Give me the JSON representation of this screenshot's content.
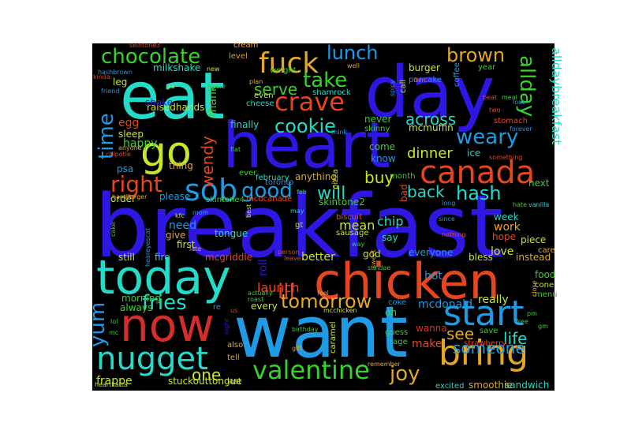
{
  "palette": [
    "#2e17e3",
    "#1f9be6",
    "#23dbc8",
    "#39d12e",
    "#c8e628",
    "#e3a825",
    "#e6461f",
    "#d62c2c"
  ],
  "words": [
    {
      "text": "breakfast",
      "color": "#2e17e3"
    },
    {
      "text": "want",
      "color": "#1f9be6"
    },
    {
      "text": "day",
      "color": "#2e17e3"
    },
    {
      "text": "eat",
      "color": "#23dbc8"
    },
    {
      "text": "heart",
      "color": "#2e17e3"
    },
    {
      "text": "chicken",
      "color": "#e6461f"
    },
    {
      "text": "today",
      "color": "#23dbc8"
    },
    {
      "text": "now",
      "color": "#d62c2c"
    },
    {
      "text": "go",
      "color": "#c8e628"
    },
    {
      "text": "canada",
      "color": "#e6461f"
    },
    {
      "text": "bring",
      "color": "#e3a825"
    },
    {
      "text": "nugget",
      "color": "#23dbc8"
    },
    {
      "text": "start",
      "color": "#1f9be6"
    },
    {
      "text": "valentine",
      "color": "#39d12e"
    },
    {
      "text": "sob",
      "color": "#1f9be6"
    },
    {
      "text": "fuck",
      "color": "#e3a825"
    },
    {
      "text": "crave",
      "color": "#e6461f"
    },
    {
      "text": "chocolate",
      "color": "#39d12e"
    },
    {
      "text": "lunch",
      "color": "#1f9be6"
    },
    {
      "text": "brown",
      "color": "#e3a825"
    },
    {
      "text": "take",
      "color": "#39d12e"
    },
    {
      "text": "cookie",
      "color": "#23dbc8"
    },
    {
      "text": "right",
      "color": "#e6461f"
    },
    {
      "text": "good",
      "color": "#1f9be6"
    },
    {
      "text": "time",
      "color": "#1f9be6"
    },
    {
      "text": "weary",
      "color": "#1f9be6"
    },
    {
      "text": "alldaybreakfast",
      "color": "#23dbc8"
    },
    {
      "text": "allday",
      "color": "#39d12e"
    },
    {
      "text": "hash",
      "color": "#23dbc8"
    },
    {
      "text": "tomorrow",
      "color": "#e3a825"
    },
    {
      "text": "fries",
      "color": "#23dbc8"
    },
    {
      "text": "ill",
      "color": "#e6461f"
    },
    {
      "text": "will",
      "color": "#23dbc8"
    },
    {
      "text": "yum",
      "color": "#1f9be6"
    },
    {
      "text": "joy",
      "color": "#e3a825"
    },
    {
      "text": "someone",
      "color": "#1f9be6"
    },
    {
      "text": "one",
      "color": "#c8e628"
    },
    {
      "text": "across",
      "color": "#23dbc8"
    },
    {
      "text": "back",
      "color": "#23dbc8"
    },
    {
      "text": "wendy",
      "color": "#e6461f"
    },
    {
      "text": "dinner",
      "color": "#c8e628"
    },
    {
      "text": "serve",
      "color": "#39d12e"
    },
    {
      "text": "buy",
      "color": "#c8e628"
    },
    {
      "text": "see",
      "color": "#e3a825"
    },
    {
      "text": "life",
      "color": "#23dbc8"
    },
    {
      "text": "launch",
      "color": "#e6461f"
    },
    {
      "text": "mcdonald",
      "color": "#1f9be6"
    },
    {
      "text": "frappe",
      "color": "#c8e628"
    },
    {
      "text": "stuckouttongue",
      "color": "#c8e628"
    },
    {
      "text": "smoothie",
      "color": "#e3a825"
    },
    {
      "text": "sandwich",
      "color": "#23dbc8"
    },
    {
      "text": "hot",
      "color": "#1f9be6"
    },
    {
      "text": "chip",
      "color": "#23dbc8"
    },
    {
      "text": "mean",
      "color": "#c8e628"
    },
    {
      "text": "make",
      "color": "#e6461f"
    },
    {
      "text": "wanna",
      "color": "#d62c2c"
    },
    {
      "text": "really",
      "color": "#c8e628"
    },
    {
      "text": "love",
      "color": "#c8e628"
    },
    {
      "text": "work",
      "color": "#e3a825"
    },
    {
      "text": "food",
      "color": "#39d12e"
    },
    {
      "text": "instead",
      "color": "#e3a825"
    },
    {
      "text": "morning",
      "color": "#39d12e"
    },
    {
      "text": "still",
      "color": "#c8e628"
    },
    {
      "text": "mcgriddle",
      "color": "#e6461f"
    },
    {
      "text": "tongue",
      "color": "#23dbc8"
    },
    {
      "text": "need",
      "color": "#1f9be6"
    },
    {
      "text": "give",
      "color": "#e3a825"
    },
    {
      "text": "first",
      "color": "#c8e628"
    },
    {
      "text": "fire",
      "color": "#23dbc8"
    },
    {
      "text": "happy",
      "color": "#39d12e"
    },
    {
      "text": "egg",
      "color": "#e6461f"
    },
    {
      "text": "sleep",
      "color": "#c8e628"
    },
    {
      "text": "thank",
      "color": "#39d12e"
    },
    {
      "text": "finally",
      "color": "#23dbc8"
    },
    {
      "text": "come",
      "color": "#39d12e"
    },
    {
      "text": "know",
      "color": "#1f9be6"
    },
    {
      "text": "never",
      "color": "#39d12e"
    },
    {
      "text": "mcmuffin",
      "color": "#c8e628"
    },
    {
      "text": "ice",
      "color": "#23dbc8"
    },
    {
      "text": "burger",
      "color": "#c8e628"
    },
    {
      "text": "pancake",
      "color": "#1f9be6"
    },
    {
      "text": "milkshake",
      "color": "#23dbc8"
    },
    {
      "text": "raisedhands",
      "color": "#c8e628"
    },
    {
      "text": "shake",
      "color": "#2e17e3"
    },
    {
      "text": "leg",
      "color": "#c8e628"
    },
    {
      "text": "thing",
      "color": "#e3a825"
    },
    {
      "text": "please",
      "color": "#1f9be6"
    },
    {
      "text": "psa",
      "color": "#1f9be6"
    },
    {
      "text": "order",
      "color": "#c8e628"
    },
    {
      "text": "skintone4",
      "color": "#39d12e"
    },
    {
      "text": "skintone2",
      "color": "#39d12e"
    },
    {
      "text": "mcdcanade",
      "color": "#e6461f"
    },
    {
      "text": "anything",
      "color": "#e3a825"
    },
    {
      "text": "ever",
      "color": "#39d12e"
    },
    {
      "text": "toronto",
      "color": "#1f9be6"
    },
    {
      "text": "pizza",
      "color": "#c8e628"
    },
    {
      "text": "bad",
      "color": "#e6461f"
    },
    {
      "text": "month",
      "color": "#39d12e"
    },
    {
      "text": "february",
      "color": "#23dbc8"
    },
    {
      "text": "next",
      "color": "#39d12e"
    },
    {
      "text": "week",
      "color": "#23dbc8"
    },
    {
      "text": "piece",
      "color": "#c8e628"
    },
    {
      "text": "hope",
      "color": "#e6461f"
    },
    {
      "text": "care",
      "color": "#e3a825"
    },
    {
      "text": "bless",
      "color": "#c8e628"
    },
    {
      "text": "everyone",
      "color": "#1f9be6"
    },
    {
      "text": "god",
      "color": "#c8e628"
    },
    {
      "text": "better",
      "color": "#c8e628"
    },
    {
      "text": "roll",
      "color": "#2e17e3"
    },
    {
      "text": "every",
      "color": "#c8e628"
    },
    {
      "text": "always",
      "color": "#39d12e"
    },
    {
      "text": "cone",
      "color": "#c8e628"
    },
    {
      "text": "menu",
      "color": "#39d12e"
    },
    {
      "text": "coke",
      "color": "#1f9be6"
    },
    {
      "text": "oh",
      "color": "#39d12e"
    },
    {
      "text": "say",
      "color": "#23dbc8"
    },
    {
      "text": "caramel",
      "color": "#c8e628"
    },
    {
      "text": "strawberry",
      "color": "#e6461f"
    },
    {
      "text": "excited",
      "color": "#23dbc8"
    },
    {
      "text": "save",
      "color": "#39d12e"
    },
    {
      "text": "rage",
      "color": "#39d12e"
    },
    {
      "text": "guess",
      "color": "#39d12e"
    },
    {
      "text": "tell",
      "color": "#e3a825"
    },
    {
      "text": "also",
      "color": "#e3a825"
    },
    {
      "text": "last",
      "color": "#c8e628"
    },
    {
      "text": "sausage",
      "color": "#c8e628"
    },
    {
      "text": "biscuit",
      "color": "#e6461f"
    },
    {
      "text": "skinny",
      "color": "#39d12e"
    },
    {
      "text": "even",
      "color": "#c8e628"
    },
    {
      "text": "cheese",
      "color": "#23dbc8"
    },
    {
      "text": "weight",
      "color": "#39d12e"
    },
    {
      "text": "level",
      "color": "#e3a825"
    },
    {
      "text": "cream",
      "color": "#e3a825"
    },
    {
      "text": "shamrock",
      "color": "#23dbc8"
    },
    {
      "text": "coffee",
      "color": "#1f9be6"
    },
    {
      "text": "call",
      "color": "#c8e628"
    },
    {
      "text": "spicy",
      "color": "#1f9be6"
    },
    {
      "text": "year",
      "color": "#39d12e"
    },
    {
      "text": "meal",
      "color": "#39d12e"
    },
    {
      "text": "lose",
      "color": "#1f9be6"
    },
    {
      "text": "stomach",
      "color": "#e6461f"
    },
    {
      "text": "two",
      "color": "#e6461f"
    },
    {
      "text": "forever",
      "color": "#1f9be6"
    },
    {
      "text": "something",
      "color": "#e6461f"
    },
    {
      "text": "hate",
      "color": "#39d12e"
    },
    {
      "text": "vanilla",
      "color": "#23dbc8"
    },
    {
      "text": "long",
      "color": "#1f9be6"
    },
    {
      "text": "since",
      "color": "#1f9be6"
    },
    {
      "text": "nothing",
      "color": "#e6461f"
    },
    {
      "text": "gt",
      "color": "#c8e628"
    },
    {
      "text": "may",
      "color": "#23dbc8"
    },
    {
      "text": "best",
      "color": "#c8e628"
    },
    {
      "text": "kfc",
      "color": "#c8e628"
    },
    {
      "text": "cake",
      "color": "#39d12e"
    },
    {
      "text": "mom",
      "color": "#1f9be6"
    },
    {
      "text": "feb",
      "color": "#39d12e"
    },
    {
      "text": "flat",
      "color": "#39d12e"
    },
    {
      "text": "person",
      "color": "#e6461f"
    },
    {
      "text": "leave",
      "color": "#e6461f"
    },
    {
      "text": "night",
      "color": "#2e17e3"
    },
    {
      "text": "feel",
      "color": "#e3a825"
    },
    {
      "text": "actually",
      "color": "#39d12e"
    },
    {
      "text": "roast",
      "color": "#39d12e"
    },
    {
      "text": "mcchicken",
      "color": "#c8e628"
    },
    {
      "text": "remember",
      "color": "#e3a825"
    },
    {
      "text": "birthday",
      "color": "#39d12e"
    },
    {
      "text": "gift",
      "color": "#e3a825"
    },
    {
      "text": "heartkatta",
      "color": "#c8e628"
    },
    {
      "text": "heareyescat",
      "color": "#1f9be6"
    },
    {
      "text": "chipotle",
      "color": "#e6461f"
    },
    {
      "text": "anyone",
      "color": "#e3a825"
    },
    {
      "text": "friend",
      "color": "#1f9be6"
    },
    {
      "text": "hashbrown",
      "color": "#1f9be6"
    },
    {
      "text": "kinda",
      "color": "#e6461f"
    },
    {
      "text": "skintone3",
      "color": "#e6461f"
    },
    {
      "text": "ya",
      "color": "#c8e628"
    },
    {
      "text": "new",
      "color": "#c8e628"
    },
    {
      "text": "whole",
      "color": "#39d12e"
    },
    {
      "text": "well",
      "color": "#e3a825"
    },
    {
      "text": "thin",
      "color": "#e6461f"
    },
    {
      "text": "free",
      "color": "#39d12e"
    },
    {
      "text": "pm",
      "color": "#39d12e"
    },
    {
      "text": "lol",
      "color": "#39d12e"
    },
    {
      "text": "mc",
      "color": "#39d12e"
    },
    {
      "text": "re",
      "color": "#1f9be6"
    },
    {
      "text": "us",
      "color": "#e6461f"
    },
    {
      "text": "sundae",
      "color": "#39d12e"
    },
    {
      "text": "way",
      "color": "#39d12e"
    },
    {
      "text": "hamburger",
      "color": "#e3a825"
    },
    {
      "text": "late",
      "color": "#e3a825"
    },
    {
      "text": "sweet",
      "color": "#e3a825"
    },
    {
      "text": "think",
      "color": "#1f9be6"
    },
    {
      "text": "plan",
      "color": "#e3a825"
    },
    {
      "text": "beat",
      "color": "#e6461f"
    },
    {
      "text": "close",
      "color": "#e3a825"
    },
    {
      "text": "gm",
      "color": "#39d12e"
    }
  ]
}
